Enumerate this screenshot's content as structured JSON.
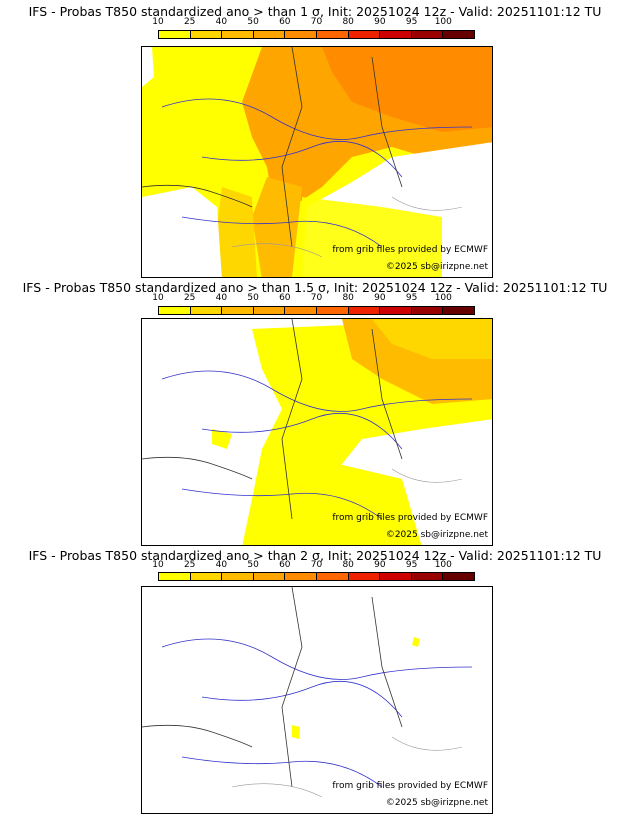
{
  "colorbar": {
    "ticks": [
      "10",
      "25",
      "40",
      "50",
      "60",
      "70",
      "80",
      "90",
      "95",
      "100"
    ],
    "colors": [
      "#ffff00",
      "#ffd700",
      "#ffbb00",
      "#ffa500",
      "#ff8c00",
      "#ff6600",
      "#ee2200",
      "#cc0000",
      "#990000",
      "#660000"
    ]
  },
  "credits": {
    "source": "from grib files provided by ECMWF",
    "copyright": "©2025 sb@irizpne.net"
  },
  "panels": [
    {
      "title": "IFS - Probas T850  standardized ano > than 1 σ, Init: 20251024 12z - Valid: 20251101:12 TU",
      "coverage": "high"
    },
    {
      "title": "IFS - Probas T850  standardized ano > than 1.5 σ, Init: 20251024 12z - Valid: 20251101:12 TU",
      "coverage": "medium"
    },
    {
      "title": "IFS - Probas T850  standardized ano > than 2 σ, Init: 20251024 12z - Valid: 20251101:12 TU",
      "coverage": "low"
    }
  ]
}
